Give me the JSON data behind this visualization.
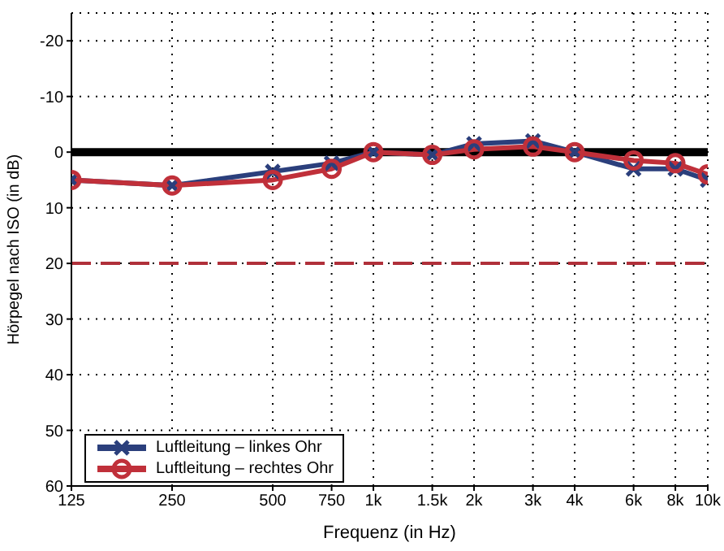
{
  "chart_data": {
    "type": "line",
    "xlabel": "Frequenz (in Hz)",
    "ylabel": "Hörpegel nach ISO (in dB)",
    "x": [
      125,
      250,
      500,
      750,
      1000,
      1500,
      2000,
      3000,
      4000,
      6000,
      8000,
      10000
    ],
    "series": [
      {
        "name": "Luftleitung – linkes Ohr",
        "color": "#2b3f7c",
        "marker": "cross",
        "values": [
          5,
          6,
          3.5,
          2,
          0,
          0.5,
          -1.5,
          -2,
          0,
          3,
          3,
          5
        ]
      },
      {
        "name": "Luftleitung – rechtes Ohr",
        "color": "#c0303a",
        "marker": "circle",
        "values": [
          5,
          6,
          5,
          3,
          0,
          0.5,
          -0.5,
          -1,
          0,
          1.5,
          2,
          4
        ]
      }
    ],
    "log": "x",
    "xlim": [
      125,
      10000
    ],
    "xticks": [
      125,
      250,
      500,
      750,
      {
        "value": 1000,
        "label": "1k"
      },
      {
        "value": 1500,
        "label": "1.5k"
      },
      {
        "value": 2000,
        "label": "2k"
      },
      {
        "value": 3000,
        "label": "3k"
      },
      {
        "value": 4000,
        "label": "4k"
      },
      {
        "value": 6000,
        "label": "6k"
      },
      {
        "value": 8000,
        "label": "8k"
      },
      {
        "value": 10000,
        "label": "10k"
      }
    ],
    "ylim": [
      60,
      -25
    ],
    "yticks": [
      -20,
      -10,
      0,
      10,
      20,
      30,
      40,
      50,
      60
    ],
    "ref_lines": [
      {
        "axis": "y",
        "value": 0,
        "color": "#000000",
        "line_style": "solid"
      },
      {
        "axis": "y",
        "value": 20,
        "color": "#b0303a",
        "line_style": "dashed"
      }
    ],
    "grid": true,
    "legend": "bottom left",
    "line_style": "solid"
  }
}
